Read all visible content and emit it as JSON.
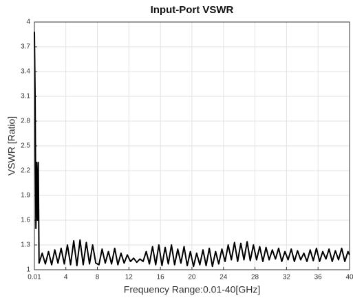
{
  "chart_data": {
    "type": "line",
    "title": "Input-Port VSWR",
    "x_label": "Frequency Range:0.01-40[GHz]",
    "y_label": "VSWR [Ratio]",
    "xlim": [
      0.01,
      40
    ],
    "ylim": [
      1,
      4
    ],
    "xticks": [
      0.01,
      4,
      8,
      12,
      16,
      20,
      24,
      28,
      32,
      36,
      40
    ],
    "yticks": [
      1,
      1.3,
      1.6,
      1.9,
      2.2,
      2.5,
      2.8,
      3.1,
      3.4,
      3.7,
      4
    ],
    "grid": true,
    "x": [
      0.01,
      0.1,
      0.2,
      0.3,
      0.4,
      0.5,
      0.6,
      1,
      1.4,
      1.8,
      2.2,
      2.6,
      3,
      3.4,
      3.8,
      4.2,
      4.6,
      5,
      5.4,
      5.8,
      6.2,
      6.6,
      7,
      7.4,
      7.8,
      8.2,
      8.6,
      9,
      9.4,
      9.8,
      10.2,
      10.6,
      11,
      11.4,
      11.8,
      12.2,
      12.6,
      13,
      13.4,
      13.8,
      14.2,
      14.6,
      15,
      15.4,
      15.8,
      16.2,
      16.6,
      17,
      17.4,
      17.8,
      18.2,
      18.6,
      19,
      19.4,
      19.8,
      20.2,
      20.6,
      21,
      21.4,
      21.8,
      22.2,
      22.6,
      23,
      23.4,
      23.8,
      24.2,
      24.6,
      25,
      25.4,
      25.8,
      26.2,
      26.6,
      27,
      27.4,
      27.8,
      28.2,
      28.6,
      29,
      29.4,
      29.8,
      30.2,
      30.6,
      31,
      31.4,
      31.8,
      32.2,
      32.6,
      33,
      33.4,
      33.8,
      34.2,
      34.6,
      35,
      35.4,
      35.8,
      36.2,
      36.6,
      37,
      37.4,
      37.8,
      38.2,
      38.6,
      39,
      39.4,
      39.8,
      40
    ],
    "series": [
      {
        "color": "#000000",
        "values": [
          3.88,
          3.1,
          1.5,
          2.3,
          1.6,
          2.3,
          1.08,
          1.2,
          1.07,
          1.22,
          1.06,
          1.24,
          1.08,
          1.26,
          1.07,
          1.3,
          1.06,
          1.35,
          1.05,
          1.36,
          1.06,
          1.33,
          1.07,
          1.3,
          1.08,
          1.06,
          1.25,
          1.08,
          1.22,
          1.07,
          1.26,
          1.06,
          1.2,
          1.08,
          1.18,
          1.1,
          1.14,
          1.09,
          1.13,
          1.1,
          1.22,
          1.07,
          1.28,
          1.06,
          1.3,
          1.05,
          1.27,
          1.07,
          1.3,
          1.06,
          1.25,
          1.08,
          1.28,
          1.05,
          1.22,
          1.04,
          1.2,
          1.06,
          1.24,
          1.05,
          1.26,
          1.04,
          1.22,
          1.07,
          1.25,
          1.1,
          1.3,
          1.12,
          1.33,
          1.1,
          1.32,
          1.12,
          1.34,
          1.11,
          1.3,
          1.12,
          1.28,
          1.1,
          1.27,
          1.12,
          1.24,
          1.13,
          1.26,
          1.1,
          1.22,
          1.12,
          1.25,
          1.1,
          1.23,
          1.12,
          1.2,
          1.1,
          1.24,
          1.11,
          1.26,
          1.1,
          1.22,
          1.13,
          1.25,
          1.1,
          1.23,
          1.12,
          1.26,
          1.1,
          1.22,
          1.18
        ]
      }
    ]
  }
}
